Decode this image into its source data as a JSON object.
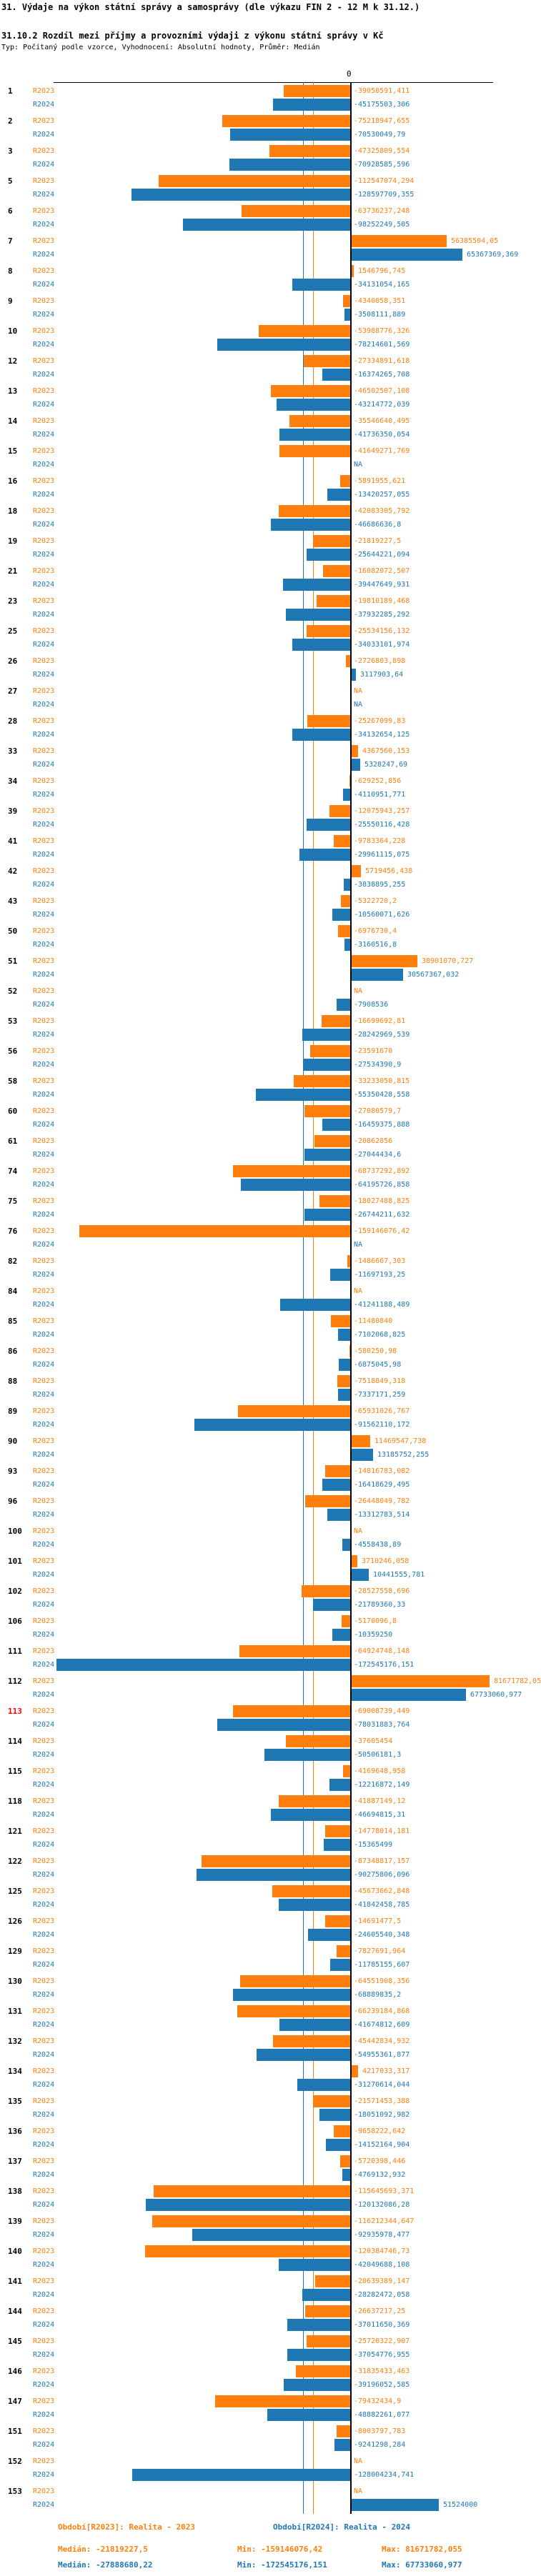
{
  "header": {
    "title": "31. Výdaje na výkon státní správy a samosprávy (dle výkazu FIN 2 - 12 M k 31.12.)",
    "subtitle": "31.10.2 Rozdíl mezi příjmy a provozními výdaji z výkonu státní správy v Kč",
    "meta": "Typ: Počítaný podle vzorce, Vyhodnocení: Absolutní hodnoty, Průměr: Medián"
  },
  "chart_data": {
    "type": "bar",
    "orientation": "horizontal",
    "zero_tick_label": "0",
    "series_labels": [
      "R2023",
      "R2024"
    ],
    "colors": {
      "r2023": "#ff7f0e",
      "r2024": "#1f77b4",
      "highlight_row_id": "#ff0000",
      "axis": "#000000"
    },
    "highlight_row_id": "113",
    "na_text": "NA",
    "median_lines": {
      "r2023": -21819227.5,
      "r2024": -27888680.22
    },
    "axis_range_hint": [
      -180000000,
      90000000
    ],
    "rows": [
      [
        "1",
        "-39050591,411",
        "-45175503,306"
      ],
      [
        "2",
        "-75218947,655",
        "-70530049,79"
      ],
      [
        "3",
        "-47325809,554",
        "-70928585,596"
      ],
      [
        "5",
        "-112547074,294",
        "-128597709,355"
      ],
      [
        "6",
        "-63736237,248",
        "-98252249,505"
      ],
      [
        "7",
        "56385504,05",
        "65367369,369"
      ],
      [
        "8",
        "1546796,745",
        "-34131054,165"
      ],
      [
        "9",
        "-4340058,351",
        "-3508111,889"
      ],
      [
        "10",
        "-53988776,326",
        "-78214601,569"
      ],
      [
        "12",
        "-27334891,618",
        "-16374265,708"
      ],
      [
        "13",
        "-46502507,108",
        "-43214772,039"
      ],
      [
        "14",
        "-35546640,495",
        "-41736350,054"
      ],
      [
        "15",
        "-41649271,769",
        "NA"
      ],
      [
        "16",
        "-5891955,621",
        "-13420257,055"
      ],
      [
        "18",
        "-42083305,792",
        "-46686636,8"
      ],
      [
        "19",
        "-21819227,5",
        "-25644221,094"
      ],
      [
        "21",
        "-16082072,507",
        "-39447649,931"
      ],
      [
        "23",
        "-19810189,468",
        "-37932285,292"
      ],
      [
        "25",
        "-25534156,132",
        "-34033101,974"
      ],
      [
        "26",
        "-2726803,898",
        "3117903,64"
      ],
      [
        "27",
        "NA",
        "NA"
      ],
      [
        "28",
        "-25267099,83",
        "-34132654,125"
      ],
      [
        "33",
        "4367560,153",
        "5328247,69"
      ],
      [
        "34",
        "-629252,856",
        "-4110951,771"
      ],
      [
        "39",
        "-12075943,257",
        "-25550116,428"
      ],
      [
        "41",
        "-9783364,228",
        "-29961115,075"
      ],
      [
        "42",
        "5719456,438",
        "-3838895,255"
      ],
      [
        "43",
        "-5322720,2",
        "-10560071,626"
      ],
      [
        "50",
        "-6976730,4",
        "-3160516,8"
      ],
      [
        "51",
        "38901070,727",
        "30567367,032"
      ],
      [
        "52",
        "NA",
        "-7908536"
      ],
      [
        "53",
        "-16699692,81",
        "-28242969,539"
      ],
      [
        "56",
        "-23591670",
        "-27534390,9"
      ],
      [
        "58",
        "-33233050,815",
        "-55350428,558"
      ],
      [
        "60",
        "-27080579,7",
        "-16459375,888"
      ],
      [
        "61",
        "-20862856",
        "-27044434,6"
      ],
      [
        "74",
        "-68737292,892",
        "-64195726,858"
      ],
      [
        "75",
        "-18027488,825",
        "-26744211,632"
      ],
      [
        "76",
        "-159146076,42",
        "NA"
      ],
      [
        "82",
        "-1486667,303",
        "-11697193,25"
      ],
      [
        "84",
        "NA",
        "-41241188,489"
      ],
      [
        "85",
        "-11480840",
        "-7102068,825"
      ],
      [
        "86",
        "-580250,98",
        "-6875045,98"
      ],
      [
        "88",
        "-7518849,318",
        "-7337171,259"
      ],
      [
        "89",
        "-65931026,767",
        "-91562110,172"
      ],
      [
        "90",
        "11469547,738",
        "13185752,255"
      ],
      [
        "93",
        "-14816783,082",
        "-16418629,495"
      ],
      [
        "96",
        "-26448049,782",
        "-13312783,514"
      ],
      [
        "100",
        "NA",
        "-4558438,89"
      ],
      [
        "101",
        "3710246,058",
        "10441555,781"
      ],
      [
        "102",
        "-28527558,696",
        "-21789360,33"
      ],
      [
        "106",
        "-5170096,8",
        "-10359250"
      ],
      [
        "111",
        "-64924748,148",
        "-172545176,151"
      ],
      [
        "112",
        "81671782,05",
        "67733060,977"
      ],
      [
        "113",
        "-69008739,449",
        "-78031883,764"
      ],
      [
        "114",
        "-37605454",
        "-50506181,3"
      ],
      [
        "115",
        "-4169648,958",
        "-12216872,149"
      ],
      [
        "118",
        "-41887149,12",
        "-46694815,31"
      ],
      [
        "121",
        "-14778014,181",
        "-15365499"
      ],
      [
        "122",
        "-87348817,157",
        "-90275806,096"
      ],
      [
        "125",
        "-45673662,848",
        "-41842458,785"
      ],
      [
        "126",
        "-14691477,5",
        "-24605540,348"
      ],
      [
        "129",
        "-7827691,964",
        "-11785155,607"
      ],
      [
        "130",
        "-64551908,356",
        "-68889835,2"
      ],
      [
        "131",
        "-66239184,868",
        "-41674812,609"
      ],
      [
        "132",
        "-45442834,932",
        "-54955361,877"
      ],
      [
        "134",
        "4217033,317",
        "-31270614,044"
      ],
      [
        "135",
        "-21571453,388",
        "-18051092,982"
      ],
      [
        "136",
        "-9658222,642",
        "-14152164,904"
      ],
      [
        "137",
        "-5720398,446",
        "-4769132,932"
      ],
      [
        "138",
        "-115645693,371",
        "-120132086,28"
      ],
      [
        "139",
        "-116212344,647",
        "-92935978,477"
      ],
      [
        "140",
        "-120384746,73",
        "-42049688,108"
      ],
      [
        "141",
        "-20639389,147",
        "-28282472,058"
      ],
      [
        "144",
        "-26637217,25",
        "-37011650,369"
      ],
      [
        "145",
        "-25720322,907",
        "-37054776,955"
      ],
      [
        "146",
        "-31835433,463",
        "-39196052,585"
      ],
      [
        "147",
        "-79432434,9",
        "-48882261,077"
      ],
      [
        "151",
        "-8003797,783",
        "-9241298,284"
      ],
      [
        "152",
        "NA",
        "-128004234,741"
      ],
      [
        "153",
        "NA",
        "51524000"
      ]
    ]
  },
  "footer": {
    "legend_r2023": "Období[R2023]: Realita - 2023",
    "legend_r2024": "Období[R2024]: Realita - 2024",
    "stats_r2023": {
      "median": "Medián: -21819227,5",
      "min": "Min: -159146076,42",
      "max": "Max: 81671782,055"
    },
    "stats_r2024": {
      "median": "Medián: -27888680,22",
      "min": "Min: -172545176,151",
      "max": "Max: 67733060,977"
    }
  }
}
